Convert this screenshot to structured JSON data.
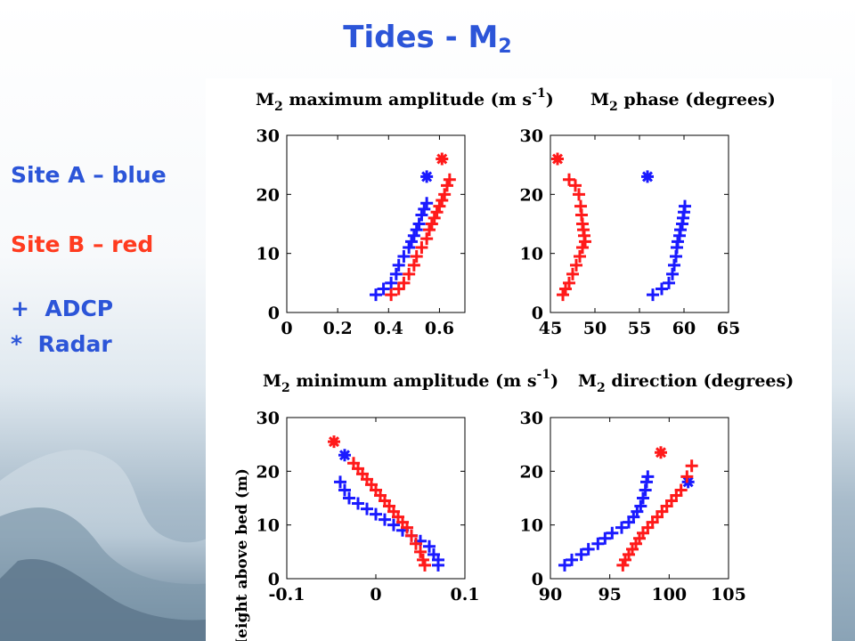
{
  "slide": {
    "title_main": "Tides - M",
    "title_sub": "2"
  },
  "legend": {
    "site_a": "Site A – blue",
    "site_b": "Site B – red",
    "adcp": "+  ADCP",
    "radar": "*  Radar"
  },
  "colors": {
    "title": "#2c55d8",
    "site_a": "#1a1aff",
    "site_b": "#ff1a1a",
    "legend_red": "#ff3b1f"
  },
  "chart_data": [
    {
      "type": "scatter",
      "title": "M2 maximum amplitude (m s-1)",
      "title_parts": [
        "M",
        "2",
        " maximum amplitude (m s",
        "-1",
        ")"
      ],
      "xlim": [
        0,
        0.7
      ],
      "ylim": [
        0,
        30
      ],
      "xticks": [
        0,
        0.2,
        0.4,
        0.6
      ],
      "xtick_labels": [
        "0",
        "0.2",
        "0.4",
        "0.6"
      ],
      "yticks": [
        0,
        10,
        20,
        30
      ],
      "ytick_labels": [
        "0",
        "10",
        "20",
        "30"
      ],
      "ylabel": "",
      "series": [
        {
          "marker": "+",
          "color": "#1a1aff",
          "x": [
            0.35,
            0.38,
            0.41,
            0.43,
            0.44,
            0.46,
            0.48,
            0.49,
            0.5,
            0.51,
            0.52,
            0.53,
            0.54,
            0.55
          ],
          "y": [
            3,
            4,
            5,
            6.5,
            8,
            9.5,
            11,
            12,
            13,
            14,
            15,
            16.5,
            17.5,
            18.5
          ]
        },
        {
          "marker": "*",
          "color": "#1a1aff",
          "x": [
            0.55
          ],
          "y": [
            23
          ]
        },
        {
          "marker": "+",
          "color": "#ff1a1a",
          "x": [
            0.41,
            0.44,
            0.46,
            0.48,
            0.5,
            0.51,
            0.53,
            0.55,
            0.56,
            0.57,
            0.58,
            0.59,
            0.6,
            0.61,
            0.62,
            0.63,
            0.64
          ],
          "y": [
            3,
            4,
            5,
            6.5,
            8,
            9.5,
            11,
            12.5,
            14,
            15,
            16,
            17,
            18,
            19,
            20,
            21.5,
            22.5
          ]
        },
        {
          "marker": "*",
          "color": "#ff1a1a",
          "x": [
            0.61
          ],
          "y": [
            26
          ]
        }
      ]
    },
    {
      "type": "scatter",
      "title": "M2 phase (degrees)",
      "title_parts": [
        "M",
        "2",
        " phase (degrees)",
        "",
        ""
      ],
      "xlim": [
        45,
        65
      ],
      "ylim": [
        0,
        30
      ],
      "xticks": [
        45,
        50,
        55,
        60,
        65
      ],
      "xtick_labels": [
        "45",
        "50",
        "55",
        "60",
        "65"
      ],
      "yticks": [
        0,
        10,
        20,
        30
      ],
      "ytick_labels": [
        "0",
        "10",
        "20",
        "30"
      ],
      "ylabel": "",
      "series": [
        {
          "marker": "+",
          "color": "#1a1aff",
          "x": [
            56.5,
            57.5,
            58.3,
            58.7,
            58.9,
            59.1,
            59.2,
            59.3,
            59.5,
            59.6,
            59.8,
            59.9,
            60.0,
            60.1
          ],
          "y": [
            3,
            4,
            5,
            6.5,
            8,
            9.5,
            11,
            12,
            13,
            14,
            15,
            16,
            17,
            18
          ]
        },
        {
          "marker": "*",
          "color": "#1a1aff",
          "x": [
            55.9
          ],
          "y": [
            23
          ]
        },
        {
          "marker": "+",
          "color": "#ff1a1a",
          "x": [
            46.4,
            46.7,
            47.1,
            47.5,
            47.9,
            48.3,
            48.6,
            48.9,
            48.8,
            48.7,
            48.6,
            48.5,
            48.4,
            48.2,
            47.8,
            47.1
          ],
          "y": [
            3,
            4,
            5,
            6.5,
            8,
            9.5,
            11,
            12,
            13,
            14,
            15,
            16.5,
            18,
            20,
            21.5,
            22.5
          ]
        },
        {
          "marker": "*",
          "color": "#ff1a1a",
          "x": [
            45.8
          ],
          "y": [
            26
          ]
        }
      ]
    },
    {
      "type": "scatter",
      "title": "M2 minimum amplitude (m s-1)",
      "title_parts": [
        "M",
        "2",
        " minimum amplitude (m s",
        "-1",
        ")"
      ],
      "xlim": [
        -0.1,
        0.1
      ],
      "ylim": [
        0,
        30
      ],
      "xticks": [
        -0.1,
        0,
        0.1
      ],
      "xtick_labels": [
        "-0.1",
        "0",
        "0.1"
      ],
      "yticks": [
        0,
        10,
        20,
        30
      ],
      "ytick_labels": [
        "0",
        "10",
        "20",
        "30"
      ],
      "ylabel": "Height above bed (m)",
      "series": [
        {
          "marker": "+",
          "color": "#1a1aff",
          "x": [
            0.07,
            0.07,
            0.065,
            0.06,
            0.05,
            0.04,
            0.03,
            0.02,
            0.01,
            0.0,
            -0.01,
            -0.02,
            -0.03,
            -0.035,
            -0.04
          ],
          "y": [
            2.5,
            3.5,
            4.5,
            6,
            7,
            8,
            9,
            10,
            11,
            12,
            13,
            14,
            15,
            16.5,
            18
          ]
        },
        {
          "marker": "*",
          "color": "#1a1aff",
          "x": [
            -0.035
          ],
          "y": [
            23
          ]
        },
        {
          "marker": "+",
          "color": "#ff1a1a",
          "x": [
            0.055,
            0.053,
            0.05,
            0.045,
            0.04,
            0.035,
            0.03,
            0.025,
            0.02,
            0.015,
            0.01,
            0.005,
            0.0,
            -0.005,
            -0.01,
            -0.015,
            -0.02,
            -0.025
          ],
          "y": [
            2.5,
            3.5,
            5,
            6.5,
            8,
            9.5,
            10.5,
            11.5,
            12.5,
            13.5,
            14.5,
            15.5,
            16.5,
            17.5,
            18.5,
            19.5,
            20.5,
            21.5
          ]
        },
        {
          "marker": "*",
          "color": "#ff1a1a",
          "x": [
            -0.047
          ],
          "y": [
            25.5
          ]
        }
      ]
    },
    {
      "type": "scatter",
      "title": "M2 direction (degrees)",
      "title_parts": [
        "M",
        "2",
        " direction (degrees)",
        "",
        ""
      ],
      "xlim": [
        90,
        105
      ],
      "ylim": [
        0,
        30
      ],
      "xticks": [
        90,
        95,
        100,
        105
      ],
      "xtick_labels": [
        "90",
        "95",
        "100",
        "105"
      ],
      "yticks": [
        0,
        10,
        20,
        30
      ],
      "ytick_labels": [
        "0",
        "10",
        "20",
        "30"
      ],
      "ylabel": "",
      "series": [
        {
          "marker": "+",
          "color": "#1a1aff",
          "x": [
            91.2,
            91.8,
            92.6,
            93.2,
            94.0,
            94.6,
            95.2,
            96.0,
            96.6,
            97.0,
            97.3,
            97.6,
            97.8,
            98.0,
            98.1,
            98.2
          ],
          "y": [
            2.5,
            3.5,
            4.5,
            5.5,
            6.5,
            7.5,
            8.5,
            9.5,
            10.5,
            11.5,
            12.5,
            13.5,
            15,
            16.5,
            18,
            19
          ]
        },
        {
          "marker": "*",
          "color": "#1a1aff",
          "x": [
            101.6
          ],
          "y": [
            18
          ]
        },
        {
          "marker": "+",
          "color": "#ff1a1a",
          "x": [
            96.1,
            96.3,
            96.6,
            96.9,
            97.2,
            97.5,
            97.8,
            98.2,
            98.6,
            99.0,
            99.4,
            99.8,
            100.2,
            100.6,
            101.0,
            101.5,
            101.9
          ],
          "y": [
            2.5,
            3.5,
            4.5,
            5.5,
            6.5,
            7.5,
            8.5,
            9.5,
            10.5,
            11.5,
            12.5,
            13.5,
            14.5,
            15.5,
            16.5,
            19,
            21
          ]
        },
        {
          "marker": "*",
          "color": "#ff1a1a",
          "x": [
            99.3
          ],
          "y": [
            23.5
          ]
        }
      ]
    }
  ]
}
